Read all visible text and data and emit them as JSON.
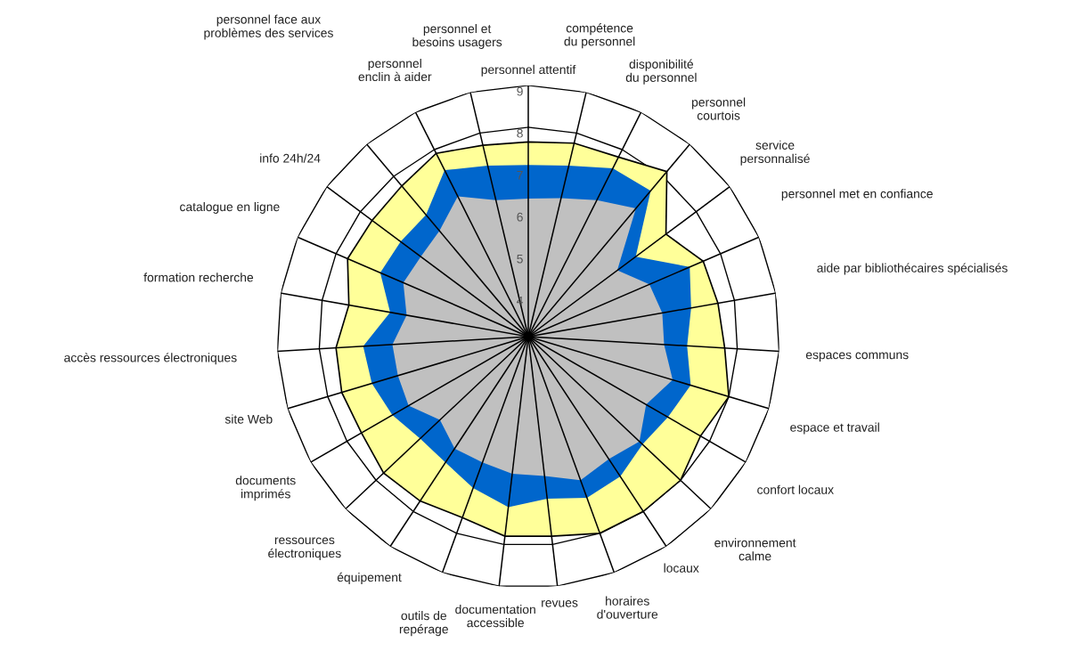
{
  "chart_data": {
    "type": "radar",
    "categories": [
      "personnel attentif",
      "compétence du personnel",
      "disponibilité du personnel",
      "personnel courtois",
      "service personnalisé",
      "personnel met en confiance",
      "aide par bibliothécaires spécialisés",
      "espaces communs",
      "espace et travail",
      "confort locaux",
      "environnement calme",
      "locaux",
      "horaires d'ouverture",
      "revues",
      "documentation accessible",
      "outils de repérage",
      "équipement",
      "ressources électroniques",
      "documents imprimés",
      "site Web",
      "accès ressources électroniques",
      "formation recherche",
      "catalogue en ligne",
      "info 24h/24",
      "personnel face aux problèmes des services",
      "personnel enclin à aider",
      "personnel et besoins usagers"
    ],
    "series": [
      {
        "color": "#ffff99",
        "values": [
          7.65,
          7.75,
          7.8,
          8.15,
          7.1,
          7.55,
          7.6,
          7.7,
          8.0,
          7.75,
          8.0,
          8.0,
          8.0,
          7.8,
          7.8,
          7.6,
          7.7,
          7.75,
          7.6,
          7.65,
          7.6,
          7.35,
          7.7,
          7.65,
          7.7,
          7.9,
          7.7
        ]
      },
      {
        "color": "#0066cc",
        "values": [
          7.1,
          7.2,
          7.5,
          7.55,
          6.2,
          7.2,
          6.95,
          6.8,
          7.05,
          6.85,
          6.75,
          7.0,
          7.1,
          6.9,
          7.1,
          6.85,
          6.6,
          6.55,
          6.75,
          6.9,
          6.95,
          6.35,
          6.85,
          6.8,
          6.8,
          7.45,
          7.2
        ]
      },
      {
        "color": "#c0c0c0",
        "values": [
          6.3,
          6.4,
          6.65,
          7.0,
          5.65,
          6.15,
          6.25,
          6.25,
          6.6,
          6.25,
          6.65,
          6.5,
          6.65,
          6.35,
          6.3,
          6.2,
          6.2,
          5.9,
          6.3,
          6.25,
          6.25,
          5.95,
          6.25,
          6.2,
          6.3,
          6.75,
          6.35
        ]
      }
    ],
    "ylim": [
      3,
      9
    ],
    "yticks": [
      4,
      5,
      6,
      7,
      8,
      9
    ],
    "grid": true
  }
}
